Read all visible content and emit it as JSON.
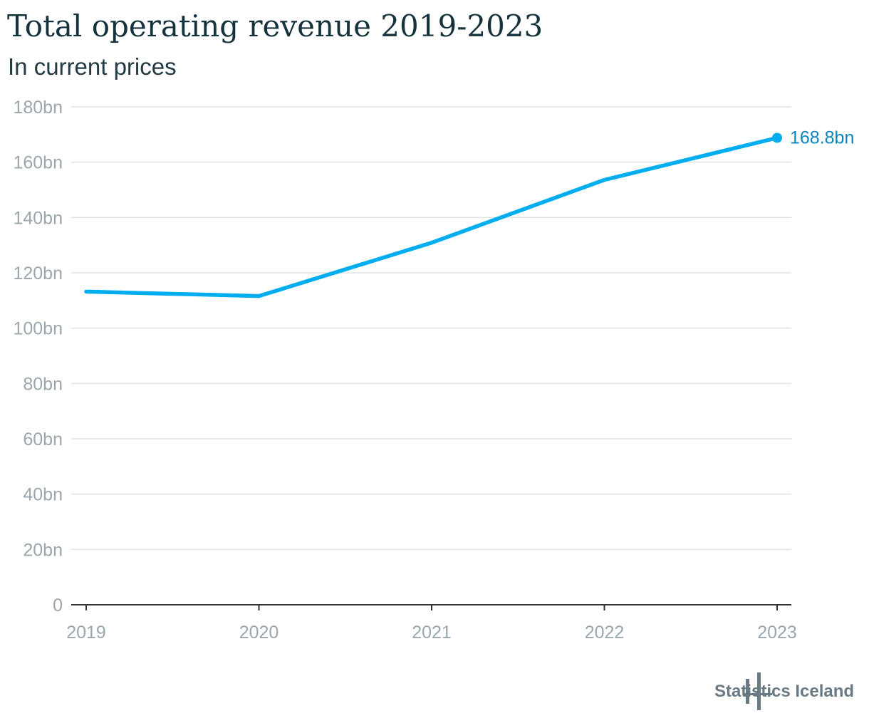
{
  "header": {
    "title": "Total operating revenue 2019-2023",
    "subtitle": "In current prices"
  },
  "footer": {
    "brand": "Statistics Iceland",
    "logo_icon": "statistics-iceland-logo-icon"
  },
  "colors": {
    "series": "#00aeef",
    "label": "#0a86bd",
    "grid": "#e2e2e2",
    "tick_text": "#9ba6ad",
    "axis": "#333333",
    "title": "#16323d"
  },
  "chart_data": {
    "type": "line",
    "x": [
      "2019",
      "2020",
      "2021",
      "2022",
      "2023"
    ],
    "series": [
      {
        "values": [
          113.2,
          111.6,
          130.9,
          153.6,
          168.8
        ]
      }
    ],
    "end_label": "168.8bn",
    "ylim": [
      0,
      180
    ],
    "yticks": [
      0,
      20,
      40,
      60,
      80,
      100,
      120,
      140,
      160,
      180
    ],
    "ytick_labels": [
      "0",
      "20bn",
      "40bn",
      "60bn",
      "80bn",
      "100bn",
      "120bn",
      "140bn",
      "160bn",
      "180bn"
    ],
    "xlabel": "",
    "ylabel": "",
    "grid": true,
    "legend": "none"
  }
}
